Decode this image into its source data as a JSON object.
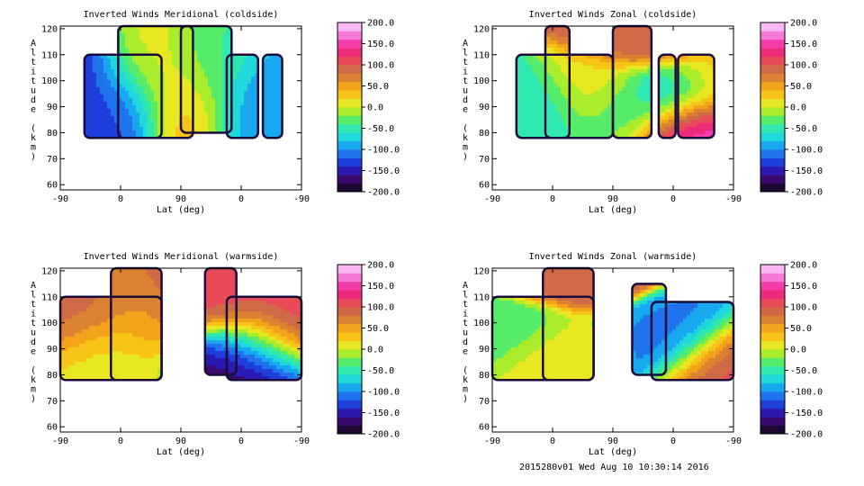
{
  "footer": "2015280v01 Wed Aug 10 10:30:14 2016",
  "colorbar": {
    "ticks": [
      "200.0",
      "150.0",
      "100.0",
      "50.0",
      "0.0",
      "-50.0",
      "-100.0",
      "-150.0",
      "-200.0"
    ],
    "colors": [
      "#1c0830",
      "#3a0a6e",
      "#2a1ab0",
      "#1f3fdc",
      "#1f74ee",
      "#17a8f0",
      "#1fd8dc",
      "#2ee8b0",
      "#56ec6a",
      "#a8ec2c",
      "#e8e822",
      "#f5c416",
      "#f2a31a",
      "#da8232",
      "#d06a46",
      "#e84a5a",
      "#f02a7a",
      "#f43ca8",
      "#f878d8",
      "#fbb6f4"
    ],
    "range": [
      -200,
      200
    ]
  },
  "chart_data": [
    {
      "type": "heatmap",
      "title": "Inverted Winds Meridional (coldside)",
      "xlabel": "Lat (deg)",
      "ylabel": "Altitude (km)",
      "x_ticks": [
        "-90",
        "0",
        "90",
        "0",
        "-90"
      ],
      "y_ticks": [
        "60",
        "70",
        "80",
        "90",
        "100",
        "110",
        "120"
      ],
      "ylim": [
        58,
        121
      ],
      "blobs": [
        {
          "x": 0.05,
          "y": 99,
          "v": -140
        },
        {
          "x": 0.22,
          "y": 95,
          "v": -130
        },
        {
          "x": 0.38,
          "y": 100,
          "v": 10
        },
        {
          "x": 0.55,
          "y": 95,
          "v": 40
        },
        {
          "x": 0.66,
          "y": 100,
          "v": -40
        },
        {
          "x": 0.8,
          "y": 96,
          "v": -120
        },
        {
          "x": 0.92,
          "y": 92,
          "v": -90
        }
      ],
      "regions": [
        {
          "x": [
            0.1,
            0.42
          ],
          "y": [
            78,
            110
          ]
        },
        {
          "x": [
            0.24,
            0.55
          ],
          "y": [
            78,
            121
          ]
        },
        {
          "x": [
            0.5,
            0.71
          ],
          "y": [
            80,
            121
          ]
        },
        {
          "x": [
            0.69,
            0.82
          ],
          "y": [
            78,
            110
          ]
        },
        {
          "x": [
            0.84,
            0.92
          ],
          "y": [
            78,
            110
          ]
        }
      ]
    },
    {
      "type": "heatmap",
      "title": "Inverted Winds Zonal (coldside)",
      "xlabel": "Lat (deg)",
      "ylabel": "Altitude (km)",
      "x_ticks": [
        "-90",
        "0",
        "90",
        "0",
        "-90"
      ],
      "y_ticks": [
        "60",
        "70",
        "80",
        "90",
        "100",
        "110",
        "120"
      ],
      "ylim": [
        58,
        121
      ],
      "blobs": [
        {
          "x": 0.15,
          "y": 95,
          "v": -60
        },
        {
          "x": 0.4,
          "y": 99,
          "v": 20
        },
        {
          "x": 0.58,
          "y": 93,
          "v": -30
        },
        {
          "x": 0.6,
          "y": 116,
          "v": 90
        },
        {
          "x": 0.78,
          "y": 95,
          "v": -150
        },
        {
          "x": 0.86,
          "y": 88,
          "v": 160
        },
        {
          "x": 0.87,
          "y": 98,
          "v": 60
        }
      ],
      "regions": [
        {
          "x": [
            0.1,
            0.5
          ],
          "y": [
            78,
            110
          ]
        },
        {
          "x": [
            0.22,
            0.32
          ],
          "y": [
            78,
            121
          ]
        },
        {
          "x": [
            0.5,
            0.66
          ],
          "y": [
            78,
            121
          ]
        },
        {
          "x": [
            0.69,
            0.76
          ],
          "y": [
            78,
            110
          ]
        },
        {
          "x": [
            0.77,
            0.92
          ],
          "y": [
            78,
            110
          ]
        }
      ]
    },
    {
      "type": "heatmap",
      "title": "Inverted Winds Meridional (warmside)",
      "xlabel": "Lat (deg)",
      "ylabel": "Altitude (km)",
      "x_ticks": [
        "-90",
        "0",
        "90",
        "0",
        "-90"
      ],
      "y_ticks": [
        "60",
        "70",
        "80",
        "90",
        "100",
        "110",
        "120"
      ],
      "ylim": [
        58,
        121
      ],
      "blobs": [
        {
          "x": 0.08,
          "y": 100,
          "v": 90
        },
        {
          "x": 0.2,
          "y": 93,
          "v": 10
        },
        {
          "x": 0.35,
          "y": 100,
          "v": 60
        },
        {
          "x": 0.65,
          "y": 105,
          "v": 110
        },
        {
          "x": 0.75,
          "y": 92,
          "v": -190
        },
        {
          "x": 0.82,
          "y": 96,
          "v": 60
        },
        {
          "x": 0.92,
          "y": 100,
          "v": 120
        }
      ],
      "regions": [
        {
          "x": [
            0.0,
            0.42
          ],
          "y": [
            78,
            110
          ]
        },
        {
          "x": [
            0.21,
            0.42
          ],
          "y": [
            78,
            121
          ]
        },
        {
          "x": [
            0.6,
            0.73
          ],
          "y": [
            80,
            121
          ]
        },
        {
          "x": [
            0.69,
            1.0
          ],
          "y": [
            78,
            110
          ]
        }
      ]
    },
    {
      "type": "heatmap",
      "title": "Inverted Winds Zonal (warmside)",
      "xlabel": "Lat (deg)",
      "ylabel": "Altitude (km)",
      "x_ticks": [
        "-90",
        "0",
        "90",
        "0",
        "-90"
      ],
      "y_ticks": [
        "60",
        "70",
        "80",
        "90",
        "100",
        "110",
        "120"
      ],
      "ylim": [
        58,
        121
      ],
      "blobs": [
        {
          "x": 0.12,
          "y": 98,
          "v": -40
        },
        {
          "x": 0.3,
          "y": 92,
          "v": 20
        },
        {
          "x": 0.34,
          "y": 116,
          "v": 100
        },
        {
          "x": 0.7,
          "y": 96,
          "v": -90
        },
        {
          "x": 0.75,
          "y": 93,
          "v": -140
        },
        {
          "x": 0.92,
          "y": 88,
          "v": 110
        }
      ],
      "regions": [
        {
          "x": [
            0.0,
            0.42
          ],
          "y": [
            78,
            110
          ]
        },
        {
          "x": [
            0.21,
            0.42
          ],
          "y": [
            78,
            121
          ]
        },
        {
          "x": [
            0.58,
            0.72
          ],
          "y": [
            80,
            115
          ]
        },
        {
          "x": [
            0.66,
            1.0
          ],
          "y": [
            78,
            108
          ]
        }
      ]
    }
  ]
}
